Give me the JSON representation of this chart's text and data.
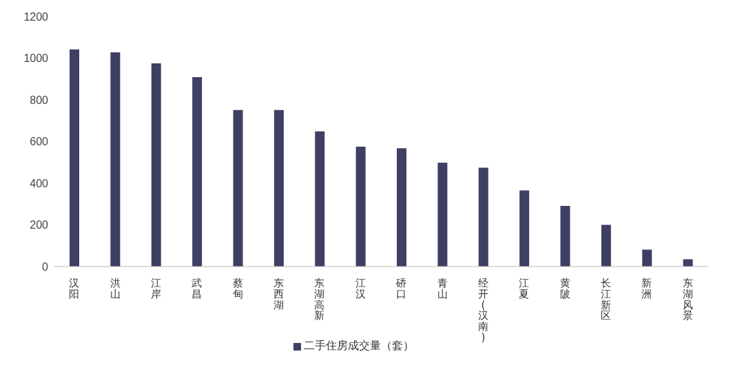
{
  "chart_data": {
    "type": "bar",
    "categories": [
      "汉阳",
      "洪山",
      "江岸",
      "武昌",
      "蔡甸",
      "东西湖",
      "东湖高新",
      "江汉",
      "硚口",
      "青山",
      "经开(汉南)",
      "江夏",
      "黄陂",
      "长江新区",
      "新洲",
      "东湖风景"
    ],
    "series": [
      {
        "name": "二手住房成交量（套）",
        "color": "#3f3f64",
        "values": [
          1042,
          1028,
          975,
          909,
          751,
          751,
          649,
          575,
          568,
          498,
          474,
          365,
          291,
          200,
          81,
          35
        ]
      }
    ],
    "ylim": [
      0,
      1200
    ],
    "yticks": [
      0,
      200,
      400,
      600,
      800,
      1000,
      1200
    ],
    "grid": false,
    "legend": "bottom"
  }
}
